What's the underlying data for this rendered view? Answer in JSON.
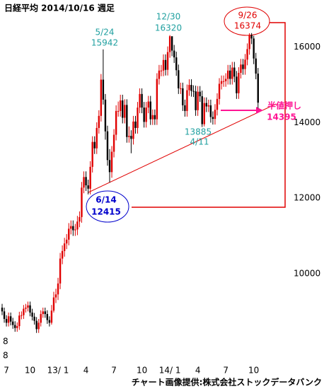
{
  "chart_data": {
    "type": "candlestick",
    "title": "日経平均  2014/10/16  週足",
    "source": "チャート画像提供:株式会社ストックデータバンク",
    "up_color": "#e00000",
    "down_color": "#000000",
    "ylim": [
      7750,
      17250
    ],
    "yticks": [
      10000,
      12000,
      14000,
      16000
    ],
    "categories": [
      null,
      null,
      "7",
      null,
      null,
      null,
      null,
      null,
      null,
      null,
      null,
      null,
      null,
      "10",
      null,
      null,
      null,
      null,
      null,
      null,
      null,
      null,
      null,
      null,
      null,
      null,
      "13/ 1",
      null,
      null,
      null,
      null,
      null,
      null,
      null,
      null,
      null,
      null,
      null,
      null,
      "4",
      null,
      null,
      null,
      null,
      null,
      null,
      null,
      null,
      null,
      null,
      null,
      null,
      "7",
      null,
      null,
      null,
      null,
      null,
      null,
      null,
      null,
      null,
      null,
      null,
      null,
      "10",
      null,
      null,
      null,
      null,
      null,
      null,
      null,
      null,
      null,
      null,
      null,
      null,
      "14/ 1",
      null,
      null,
      null,
      null,
      null,
      null,
      null,
      null,
      null,
      null,
      null,
      null,
      "4",
      null,
      null,
      null,
      null,
      null,
      null,
      null,
      null,
      null,
      null,
      null,
      null,
      "7",
      null,
      null,
      null,
      null,
      null,
      null,
      null,
      null,
      null,
      null,
      null,
      null,
      "10",
      null,
      null
    ],
    "open": [
      9100,
      9000,
      8800,
      8700,
      8870,
      8730,
      8640,
      8560,
      8610,
      8890,
      8900,
      9070,
      9100,
      9160,
      8970,
      8860,
      8750,
      8530,
      8700,
      8930,
      9000,
      8930,
      8770,
      8700,
      9020,
      9370,
      9450,
      9740,
      10400,
      10600,
      10800,
      10900,
      11190,
      11260,
      11150,
      11170,
      11380,
      11500,
      12280,
      12560,
      12340,
      12250,
      12830,
      13490,
      13320,
      13860,
      14180,
      15140,
      14610,
      13770,
      13010,
      12690,
      13230,
      13680,
      14310,
      14310,
      14590,
      14130,
      14470,
      13620,
      13650,
      13570,
      14030,
      13860,
      14400,
      14760,
      14400,
      14020,
      14400,
      14560,
      14090,
      14200,
      14090,
      15160,
      15380,
      15380,
      15660,
      15400,
      15870,
      16290,
      15910,
      15730,
      15390,
      14910,
      14910,
      14460,
      14310,
      14860,
      15000,
      14840,
      14830,
      14330,
      14820,
      14700,
      13960,
      14520,
      14430,
      14460,
      14150,
      14100,
      14340,
      14630,
      15030,
      15100,
      15100,
      15160,
      15380,
      15160,
      15460,
      15220,
      14780,
      15320,
      15540,
      15420,
      15670,
      15950,
      16320,
      16230,
      15700,
      15300
    ],
    "high": [
      9200,
      9100,
      8900,
      8970,
      8970,
      8830,
      8740,
      8710,
      8990,
      9000,
      9170,
      9200,
      9260,
      9260,
      9070,
      8960,
      8850,
      8800,
      9030,
      9100,
      9100,
      9030,
      8870,
      9170,
      9520,
      9600,
      9890,
      10550,
      10750,
      10950,
      11050,
      11340,
      11410,
      11410,
      11320,
      11530,
      11650,
      12430,
      12710,
      12710,
      12490,
      12980,
      13640,
      13640,
      14010,
      14330,
      15290,
      15942,
      14760,
      13920,
      13300,
      13380,
      13830,
      14460,
      14560,
      14740,
      14740,
      14620,
      14620,
      13900,
      13800,
      14180,
      14180,
      14550,
      14910,
      14910,
      14550,
      14550,
      14710,
      14710,
      14350,
      14350,
      15310,
      15530,
      15530,
      15810,
      15810,
      16020,
      16320,
      16210,
      16060,
      15880,
      15540,
      15060,
      15060,
      14610,
      15010,
      15150,
      15150,
      14990,
      14980,
      14970,
      14970,
      14850,
      14670,
      14670,
      14610,
      14610,
      14300,
      14490,
      14780,
      15180,
      15250,
      15250,
      15310,
      15530,
      15530,
      15610,
      15610,
      15370,
      15470,
      15690,
      15690,
      15820,
      16100,
      16370,
      16374,
      16300,
      15850,
      15450
    ],
    "low": [
      8900,
      8700,
      8600,
      8600,
      8630,
      8540,
      8460,
      8460,
      8510,
      8790,
      8800,
      8970,
      9000,
      8870,
      8760,
      8650,
      8430,
      8430,
      8600,
      8830,
      8830,
      8670,
      8600,
      8650,
      8970,
      9220,
      9300,
      9590,
      10250,
      10450,
      10650,
      10750,
      11040,
      11000,
      11000,
      11020,
      11230,
      11350,
      12130,
      12190,
      12100,
      12100,
      12680,
      13170,
      13170,
      13710,
      14030,
      14480,
      13550,
      12860,
      12415,
      12540,
      13080,
      13530,
      14160,
      14160,
      13980,
      13980,
      13470,
      13470,
      13190,
      13420,
      13710,
      13710,
      14250,
      14250,
      13870,
      13870,
      14250,
      13940,
      13940,
      13940,
      13940,
      15010,
      15230,
      15230,
      15250,
      15250,
      15720,
      15760,
      15580,
      15240,
      14760,
      14760,
      14310,
      14160,
      14160,
      14710,
      14690,
      14680,
      14180,
      14180,
      14550,
      13885,
      13900,
      14280,
      14280,
      14000,
      13950,
      13950,
      14190,
      14480,
      14880,
      14950,
      14950,
      15010,
      15010,
      15010,
      15070,
      14630,
      14630,
      15170,
      15270,
      15270,
      15520,
      15800,
      16080,
      15550,
      15150,
      14380
    ],
    "close": [
      9000,
      8800,
      8700,
      8870,
      8730,
      8640,
      8560,
      8610,
      8890,
      8900,
      9070,
      9100,
      9160,
      8970,
      8860,
      8750,
      8530,
      8700,
      8930,
      9000,
      8930,
      8770,
      8700,
      9020,
      9370,
      9450,
      9740,
      10400,
      10600,
      10800,
      10900,
      11190,
      11260,
      11150,
      11170,
      11380,
      11500,
      12280,
      12560,
      12340,
      12250,
      12830,
      13490,
      13320,
      13860,
      14180,
      15140,
      14610,
      13770,
      13010,
      12690,
      13230,
      13680,
      14310,
      14310,
      14590,
      14130,
      14470,
      13620,
      13650,
      13570,
      14030,
      13860,
      14400,
      14760,
      14400,
      14020,
      14400,
      14560,
      14090,
      14200,
      14090,
      15160,
      15380,
      15380,
      15660,
      15400,
      15870,
      16290,
      15910,
      15730,
      15390,
      14910,
      14910,
      14460,
      14310,
      14860,
      15000,
      14840,
      14830,
      14330,
      14820,
      14700,
      13960,
      14520,
      14430,
      14460,
      14150,
      14100,
      14340,
      14630,
      15030,
      15100,
      15100,
      15160,
      15380,
      15160,
      15460,
      15220,
      14780,
      15320,
      15540,
      15420,
      15670,
      15950,
      16320,
      16230,
      15700,
      15300,
      14530
    ],
    "annotations": [
      {
        "text": "5/24",
        "color": "#20a0a0"
      },
      {
        "text": "15942",
        "color": "#20a0a0"
      },
      {
        "text": "12/30",
        "color": "#20a0a0"
      },
      {
        "text": "16320",
        "color": "#20a0a0"
      },
      {
        "text": "9/26",
        "color": "#e00000"
      },
      {
        "text": "16374",
        "color": "#e00000"
      },
      {
        "text": "13885",
        "color": "#20a0a0"
      },
      {
        "text": "4/11",
        "color": "#20a0a0"
      },
      {
        "text": "6/14",
        "color": "#0000cc"
      },
      {
        "text": "12415",
        "color": "#0000cc"
      },
      {
        "text": "半値押し",
        "color": "#ff1493"
      },
      {
        "text": "14395",
        "color": "#ff1493"
      },
      {
        "text": "8",
        "color": "#000000"
      },
      {
        "text": "8",
        "color": "#000000"
      }
    ]
  }
}
